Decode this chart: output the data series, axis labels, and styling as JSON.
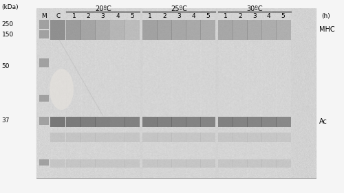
{
  "fig_width": 5.0,
  "fig_height": 2.81,
  "dpi": 100,
  "outer_bg": "#f5f5f5",
  "gel_bg": "#d8d5d0",
  "kda_label": "(kDa)",
  "h_label": "(h)",
  "kda_values": [
    "250",
    "150",
    "50",
    "37"
  ],
  "right_labels": [
    "MHC",
    "Ac"
  ],
  "temp_labels": [
    "20ºC",
    "25ºC",
    "30ºC"
  ],
  "col_labels": [
    "M",
    "C",
    "1",
    "2",
    "3",
    "4",
    "5",
    "1",
    "2",
    "3",
    "4",
    "5",
    "1",
    "2",
    "3",
    "4",
    "5"
  ],
  "font_size_labels": 6.5,
  "font_size_kda": 6.5,
  "font_size_temp": 7,
  "font_size_right": 7
}
